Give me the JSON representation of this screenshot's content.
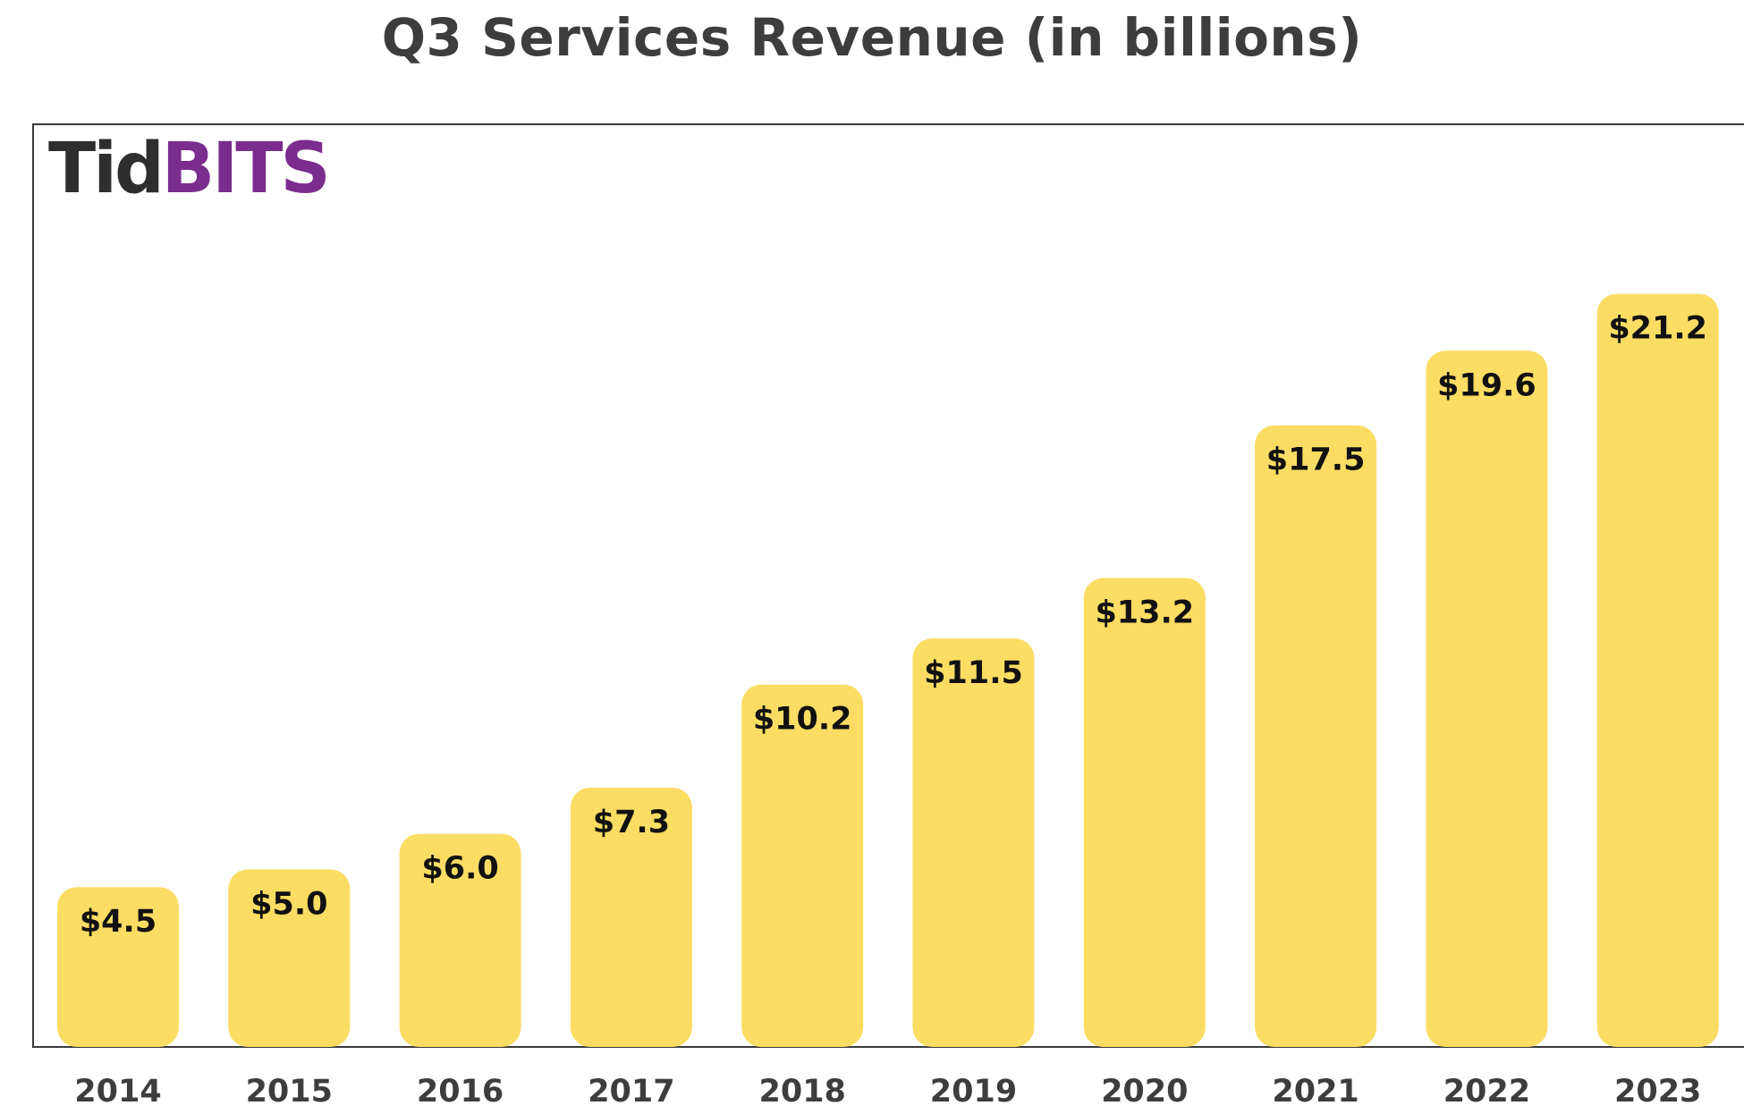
{
  "chart_data": {
    "type": "bar",
    "title": "Q3 Services Revenue (in billions)",
    "xlabel": "",
    "ylabel": "",
    "categories": [
      "2014",
      "2015",
      "2016",
      "2017",
      "2018",
      "2019",
      "2020",
      "2021",
      "2022",
      "2023"
    ],
    "values": [
      4.5,
      5.0,
      6.0,
      7.3,
      10.2,
      11.5,
      13.2,
      17.5,
      19.6,
      21.2
    ],
    "value_labels": [
      "$4.5",
      "$5.0",
      "$6.0",
      "$7.3",
      "$10.2",
      "$11.5",
      "$13.2",
      "$17.5",
      "$19.6",
      "$21.2"
    ],
    "ylim": [
      0,
      26
    ],
    "grid": false,
    "legend": "none",
    "bar_color": "#fcdd63"
  },
  "logo": {
    "part1": "Tid",
    "part2": "BITS",
    "color1": "#2e2e2e",
    "color2": "#7b2d8e"
  }
}
